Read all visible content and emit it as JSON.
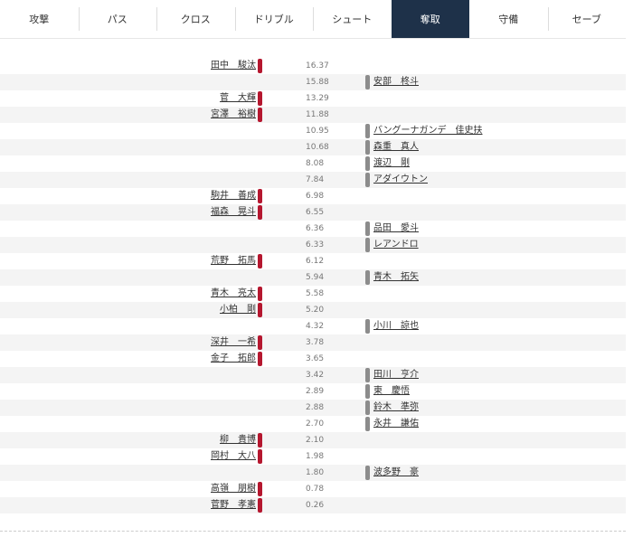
{
  "tabs": [
    {
      "label": "攻撃",
      "active": false
    },
    {
      "label": "パス",
      "active": false
    },
    {
      "label": "クロス",
      "active": false
    },
    {
      "label": "ドリブル",
      "active": false
    },
    {
      "label": "シュート",
      "active": false
    },
    {
      "label": "奪取",
      "active": true
    },
    {
      "label": "守備",
      "active": false
    },
    {
      "label": "セーブ",
      "active": false
    }
  ],
  "colors": {
    "active_tab": "#1e3149",
    "left_team": "#b5172f",
    "right_team": "#8c8c8c",
    "row_stripe": "#f4f4f4"
  },
  "rows": [
    {
      "value": "16.37",
      "left": "田中　駿汰",
      "right": ""
    },
    {
      "value": "15.88",
      "left": "",
      "right": "安部　柊斗"
    },
    {
      "value": "13.29",
      "left": "菅　大輝",
      "right": ""
    },
    {
      "value": "11.88",
      "left": "宮澤　裕樹",
      "right": ""
    },
    {
      "value": "10.95",
      "left": "",
      "right": "バングーナガンデ　佳史扶"
    },
    {
      "value": "10.68",
      "left": "",
      "right": "森重　真人"
    },
    {
      "value": "8.08",
      "left": "",
      "right": "渡辺　剛"
    },
    {
      "value": "7.84",
      "left": "",
      "right": "アダイウトン"
    },
    {
      "value": "6.98",
      "left": "駒井　善成",
      "right": ""
    },
    {
      "value": "6.55",
      "left": "福森　晃斗",
      "right": ""
    },
    {
      "value": "6.36",
      "left": "",
      "right": "品田　愛斗"
    },
    {
      "value": "6.33",
      "left": "",
      "right": "レアンドロ"
    },
    {
      "value": "6.12",
      "left": "荒野　拓馬",
      "right": ""
    },
    {
      "value": "5.94",
      "left": "",
      "right": "青木　拓矢"
    },
    {
      "value": "5.58",
      "left": "青木　亮太",
      "right": ""
    },
    {
      "value": "5.20",
      "left": "小柏　剛",
      "right": ""
    },
    {
      "value": "4.32",
      "left": "",
      "right": "小川　諒也"
    },
    {
      "value": "3.78",
      "left": "深井　一希",
      "right": ""
    },
    {
      "value": "3.65",
      "left": "金子　拓郎",
      "right": ""
    },
    {
      "value": "3.42",
      "left": "",
      "right": "田川　亨介"
    },
    {
      "value": "2.89",
      "left": "",
      "right": "東　慶悟"
    },
    {
      "value": "2.88",
      "left": "",
      "right": "鈴木　準弥"
    },
    {
      "value": "2.70",
      "left": "",
      "right": "永井　謙佑"
    },
    {
      "value": "2.10",
      "left": "柳　貴博",
      "right": ""
    },
    {
      "value": "1.98",
      "left": "岡村　大八",
      "right": ""
    },
    {
      "value": "1.80",
      "left": "",
      "right": "波多野　豪"
    },
    {
      "value": "0.78",
      "left": "高嶺　朋樹",
      "right": ""
    },
    {
      "value": "0.26",
      "left": "菅野　孝憲",
      "right": ""
    }
  ]
}
